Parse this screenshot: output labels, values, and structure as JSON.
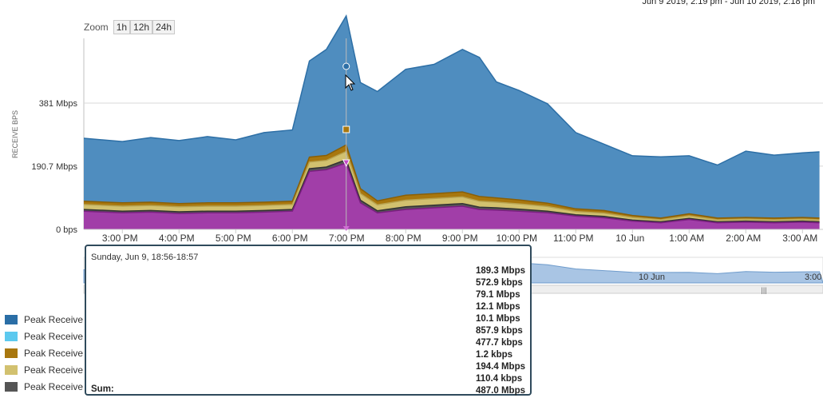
{
  "header": {
    "range": "Jun 9 2019, 2:19 pm - Jun 10 2019, 2:18 pm"
  },
  "zoom": {
    "label": "Zoom",
    "buttons": [
      "1h",
      "12h",
      "24h"
    ]
  },
  "colors": {
    "blue": "#4f8dbf",
    "blue_line": "#2d6fa6",
    "magenta": "#a13ea8",
    "gold": "#a8770e",
    "khaki": "#d2c16f",
    "gray": "#555555"
  },
  "chart_data": {
    "type": "area",
    "ylabel": "RECEIVE BPS",
    "yticks": [
      "381 Mbps",
      "190.7 Mbps",
      "0 bps"
    ],
    "ytick_values": [
      381,
      190.7,
      0
    ],
    "ylim": [
      0,
      560
    ],
    "xticks": [
      "3:00 PM",
      "4:00 PM",
      "5:00 PM",
      "6:00 PM",
      "7:00 PM",
      "8:00 PM",
      "9:00 PM",
      "10:00 PM",
      "11:00 PM",
      "10 Jun",
      "1:00 AM",
      "2:00 AM",
      "3:00 AM"
    ],
    "x_hours": [
      14.32,
      15,
      15.5,
      16,
      16.5,
      17,
      17.5,
      18,
      18.3,
      18.6,
      18.95,
      19.2,
      19.5,
      20,
      20.5,
      21,
      21.3,
      21.6,
      22,
      22.5,
      23,
      23.5,
      24,
      24.5,
      25,
      25.5,
      26,
      26.5,
      27,
      27.3
    ],
    "series": [
      {
        "name": "Peak Receive",
        "values": [
          190,
          185,
          195,
          190,
          200,
          190,
          210,
          215,
          290,
          320,
          389,
          320,
          330,
          380,
          390,
          430,
          420,
          350,
          330,
          300,
          230,
          200,
          180,
          185,
          175,
          160,
          200,
          190,
          195,
          200
        ]
      },
      {
        "name": "Peak Receive",
        "values": [
          55,
          50,
          52,
          48,
          50,
          50,
          52,
          55,
          175,
          180,
          200,
          80,
          50,
          60,
          65,
          70,
          60,
          58,
          55,
          50,
          40,
          35,
          25,
          20,
          30,
          20,
          22,
          20,
          22,
          20
        ]
      },
      {
        "name": "Peak Receive",
        "values": [
          10,
          10,
          10,
          10,
          10,
          10,
          10,
          10,
          15,
          15,
          20,
          15,
          12,
          15,
          15,
          15,
          14,
          13,
          12,
          10,
          8,
          8,
          6,
          5,
          6,
          5,
          5,
          5,
          5,
          5
        ]
      },
      {
        "name": "Peak Receive",
        "values": [
          15,
          15,
          15,
          15,
          15,
          15,
          15,
          15,
          20,
          20,
          25,
          20,
          18,
          20,
          20,
          20,
          18,
          17,
          16,
          14,
          10,
          10,
          8,
          6,
          8,
          6,
          6,
          6,
          6,
          6
        ]
      },
      {
        "name": "Peak Receive",
        "values": [
          5,
          5,
          5,
          5,
          5,
          5,
          5,
          5,
          8,
          8,
          10,
          8,
          6,
          8,
          8,
          8,
          7,
          7,
          6,
          5,
          4,
          4,
          3,
          3,
          3,
          3,
          3,
          3,
          3,
          3
        ]
      }
    ]
  },
  "navigator": {
    "label": "10 Jun",
    "label2": "3:00",
    "handle": "|||"
  },
  "tooltip": {
    "title": "Sunday, Jun 9, 18:56-18:57",
    "values": [
      "189.3 Mbps",
      "572.9 kbps",
      "79.1 Mbps",
      "12.1 Mbps",
      "10.1 Mbps",
      "857.9 kbps",
      "477.7 kbps",
      "1.2 kbps",
      "194.4 Mbps",
      "110.4 kbps",
      "487.0 Mbps"
    ],
    "sum_label": "Sum:"
  },
  "legend": {
    "items": [
      {
        "label": "Peak Receive",
        "color": "#2a6ea6"
      },
      {
        "label": "Peak Receive",
        "color": "#5cc9ef"
      },
      {
        "label": "Peak Receive",
        "color": "#a8770e"
      },
      {
        "label": "Peak Receive",
        "color": "#d2c16f"
      },
      {
        "label": "Peak Receive",
        "color": "#555555"
      }
    ]
  }
}
